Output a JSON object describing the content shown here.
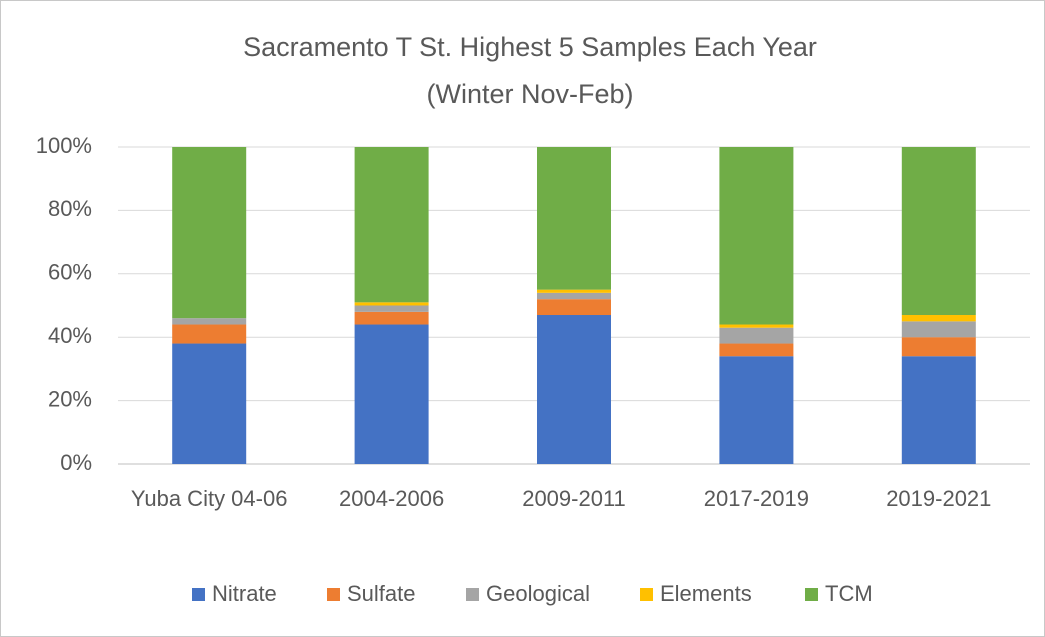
{
  "chart_data": {
    "type": "stacked_bar",
    "title": "Sacramento T St. Highest 5 Samples Each Year",
    "subtitle": "(Winter Nov-Feb)",
    "categories": [
      "Yuba City 04-06",
      "2004-2006",
      "2009-2011",
      "2017-2019",
      "2019-2021"
    ],
    "series": [
      {
        "name": "Nitrate",
        "color": "#4472c4",
        "values": [
          38,
          44,
          47,
          34,
          34
        ]
      },
      {
        "name": "Sulfate",
        "color": "#ed7d31",
        "values": [
          6,
          4,
          5,
          4,
          6
        ]
      },
      {
        "name": "Geological",
        "color": "#a5a5a5",
        "values": [
          2,
          2,
          2,
          5,
          5
        ]
      },
      {
        "name": "Elements",
        "color": "#ffc000",
        "values": [
          0,
          1,
          1,
          1,
          2
        ]
      },
      {
        "name": "TCM",
        "color": "#70ad47",
        "values": [
          54,
          49,
          45,
          56,
          53
        ]
      }
    ],
    "ylim": [
      0,
      100
    ],
    "yticks": [
      {
        "value": 0,
        "label": "0%"
      },
      {
        "value": 20,
        "label": "20%"
      },
      {
        "value": 40,
        "label": "40%"
      },
      {
        "value": 60,
        "label": "60%"
      },
      {
        "value": 80,
        "label": "80%"
      },
      {
        "value": 100,
        "label": "100%"
      }
    ],
    "grid": true,
    "legend": "bottom"
  }
}
